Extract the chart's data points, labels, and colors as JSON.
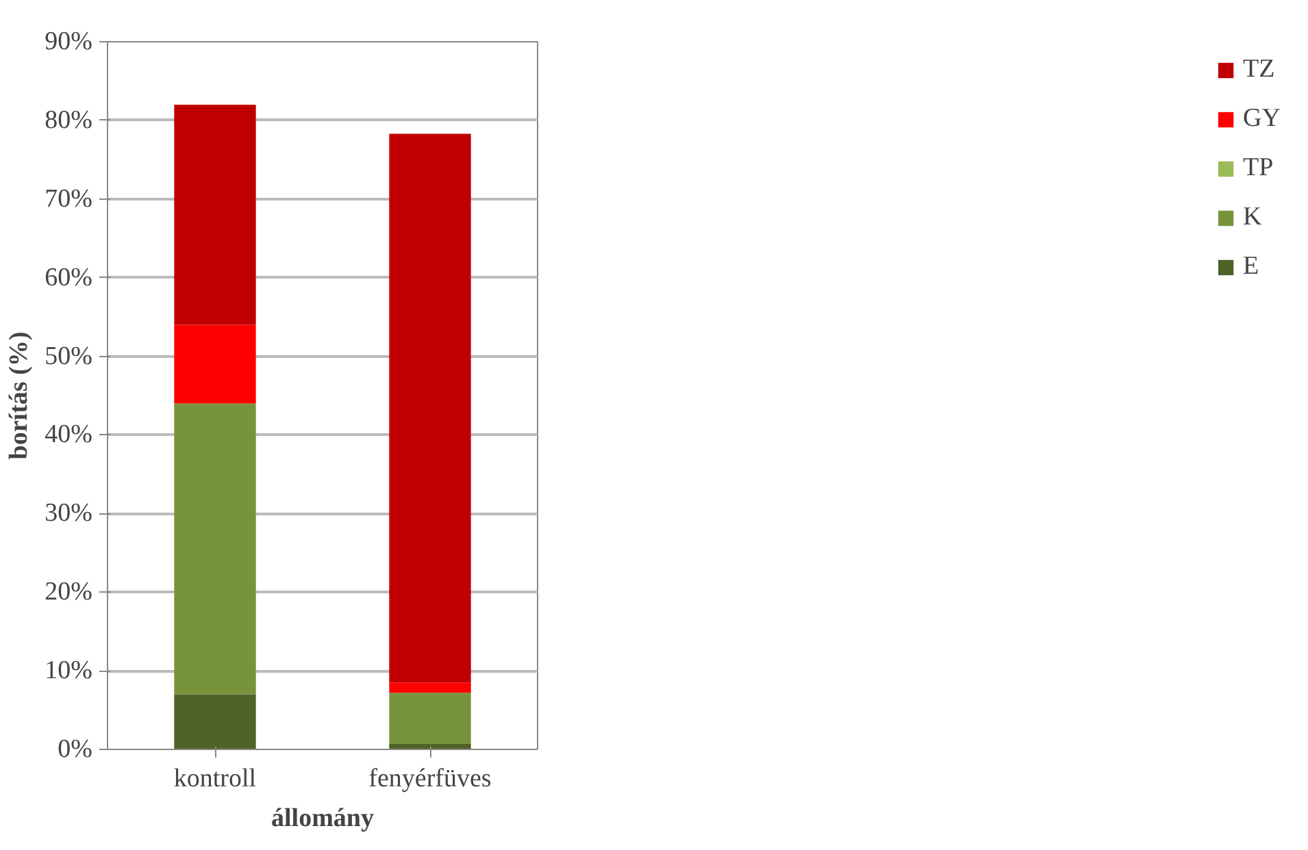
{
  "chart_data": {
    "type": "bar",
    "stacked": true,
    "categories": [
      "kontroll",
      "fenyérfüves"
    ],
    "xlabel": "állomány",
    "ylabel": "borítás (%)",
    "ylim": [
      0,
      90
    ],
    "yticks": [
      {
        "value": 0,
        "label": "0%"
      },
      {
        "value": 10,
        "label": "10%"
      },
      {
        "value": 20,
        "label": "20%"
      },
      {
        "value": 30,
        "label": "30%"
      },
      {
        "value": 40,
        "label": "40%"
      },
      {
        "value": 50,
        "label": "50%"
      },
      {
        "value": 60,
        "label": "60%"
      },
      {
        "value": 70,
        "label": "70%"
      },
      {
        "value": 80,
        "label": "80%"
      },
      {
        "value": 90,
        "label": "90%"
      }
    ],
    "grid": "y",
    "legend": "right",
    "series": [
      {
        "name": "E",
        "color": "#4f6228",
        "values": [
          7,
          0.7
        ]
      },
      {
        "name": "K",
        "color": "#77933c",
        "values": [
          37,
          6.5
        ]
      },
      {
        "name": "TP",
        "color": "#9bbb59",
        "values": [
          0,
          0
        ]
      },
      {
        "name": "GY",
        "color": "#ff0000",
        "values": [
          10,
          1.3
        ]
      },
      {
        "name": "TZ",
        "color": "#c00000",
        "values": [
          28,
          69.8
        ]
      }
    ]
  }
}
